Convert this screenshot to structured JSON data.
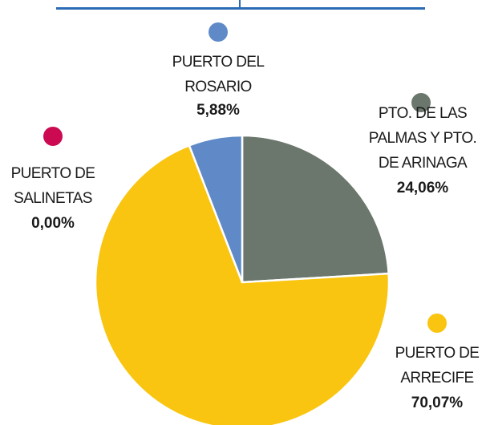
{
  "chart_data": {
    "type": "pie",
    "categories": [
      "PTO. DE LAS\nPALMAS Y PTO.\nDE ARINAGA",
      "PUERTO DE\nARRECIFE",
      "PUERTO DE\nSALINETAS",
      "PUERTO DEL\nROSARIO"
    ],
    "values": [
      24.06,
      70.07,
      0.0,
      5.88
    ],
    "value_labels": [
      "24,06%",
      "70,07%",
      "0,00%",
      "5,88%"
    ],
    "colors": [
      "#6b776d",
      "#f9c511",
      "#cc0a52",
      "#5f8ac7"
    ]
  }
}
